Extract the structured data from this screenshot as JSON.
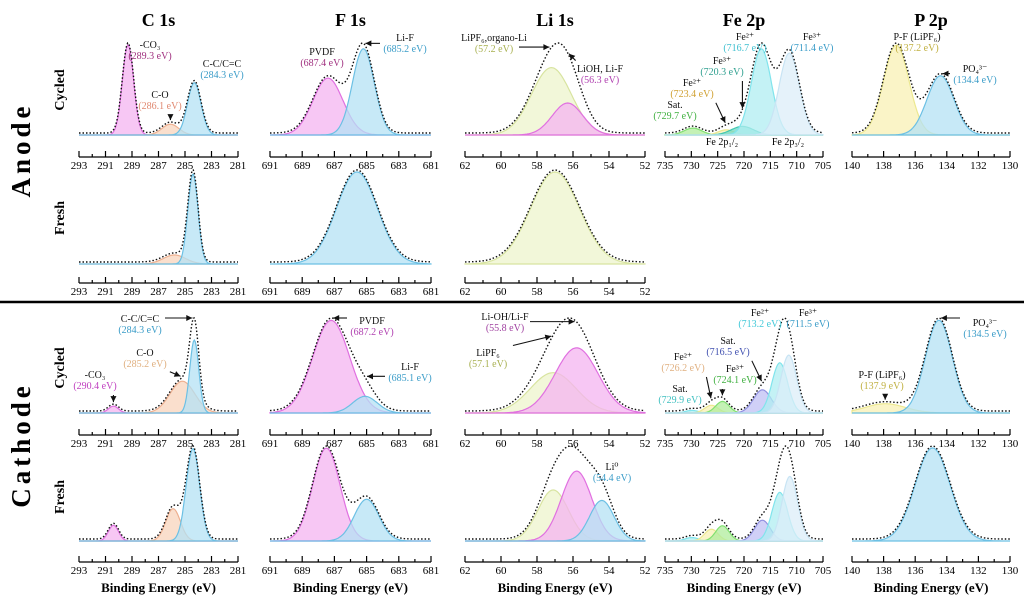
{
  "chart_data": {
    "type": "line",
    "columns": [
      "C 1s",
      "F 1s",
      "Li 1s",
      "Fe 2p",
      "P 2p"
    ],
    "sections": [
      "Anode",
      "Cathode"
    ],
    "rows": [
      "Cycled",
      "Fresh"
    ],
    "xlabel": "Binding Energy (eV)",
    "x_reversed": true,
    "xlim": {
      "C 1s": [
        293,
        281
      ],
      "F 1s": [
        691,
        681
      ],
      "Li 1s": [
        62,
        52
      ],
      "Fe 2p": [
        735,
        705
      ],
      "P 2p": [
        140,
        130
      ]
    },
    "ticks": {
      "C 1s": [
        "293",
        "291",
        "289",
        "287",
        "285",
        "283",
        "281"
      ],
      "F 1s": [
        "691",
        "689",
        "687",
        "685",
        "683",
        "681"
      ],
      "Li 1s": [
        "62",
        "60",
        "58",
        "56",
        "54",
        "52"
      ],
      "Fe 2p": [
        "735",
        "730",
        "725",
        "720",
        "715",
        "710",
        "705"
      ],
      "P 2p": [
        "140",
        "138",
        "136",
        "134",
        "132",
        "130"
      ]
    },
    "colors": {
      "magenta": "#e070e0",
      "blue": "#6cc0e4",
      "orange": "#eeb090",
      "olive": "#d8e4a0",
      "yellow": "#ece890",
      "teal": "#40c8b0",
      "green": "#80e070",
      "purple": "#9090e0",
      "lightblue": "#c8e4f4",
      "cyan": "#80e4ec"
    },
    "panels": [
      {
        "section": "Anode",
        "row": "Cycled",
        "element": "C 1s",
        "components": [
          {
            "name": "-CO3",
            "energy": 289.3,
            "fwhm": 1.0,
            "height": 1.0,
            "color": "magenta"
          },
          {
            "name": "C-O",
            "energy": 286.1,
            "fwhm": 1.5,
            "height": 0.12,
            "color": "orange"
          },
          {
            "name": "C-C/C=C",
            "energy": 284.3,
            "fwhm": 1.2,
            "height": 0.58,
            "color": "blue"
          }
        ],
        "annotations": [
          {
            "text": "-CO₃",
            "value": "(289.3 eV)",
            "color": "#a0307f",
            "component": 0
          },
          {
            "text": "C-O",
            "value": "(286.1 eV)",
            "color": "#e08870",
            "component": 1
          },
          {
            "text": "C-C/C=C",
            "value": "(284.3 eV)",
            "color": "#3a9cc8",
            "component": 2
          }
        ]
      },
      {
        "section": "Anode",
        "row": "Cycled",
        "element": "F 1s",
        "components": [
          {
            "name": "PVDF",
            "energy": 687.4,
            "fwhm": 2.2,
            "height": 0.66,
            "color": "magenta"
          },
          {
            "name": "Li-F",
            "energy": 685.2,
            "fwhm": 1.6,
            "height": 1.0,
            "color": "blue"
          }
        ],
        "annotations": [
          {
            "text": "PVDF",
            "value": "(687.4 eV)",
            "color": "#a0307f",
            "component": 0
          },
          {
            "text": "Li-F",
            "value": "(685.2 eV)",
            "color": "#3a9cc8",
            "component": 1
          }
        ]
      },
      {
        "section": "Anode",
        "row": "Cycled",
        "element": "Li 1s",
        "components": [
          {
            "name": "LiPF6,organo-Li",
            "energy": 57.2,
            "fwhm": 2.6,
            "height": 0.78,
            "color": "olive"
          },
          {
            "name": "LiOH, Li-F",
            "energy": 56.3,
            "fwhm": 2.0,
            "height": 0.37,
            "color": "magenta"
          }
        ],
        "annotations": [
          {
            "text": "LiPF₆,organo-Li",
            "value": "(57.2 eV)",
            "color": "#a8b050",
            "component": 0
          },
          {
            "text": "LiOH, Li-F",
            "value": "(56.3 eV)",
            "color": "#b040b0",
            "component": 1
          }
        ]
      },
      {
        "section": "Anode",
        "row": "Cycled",
        "element": "Fe 2p",
        "components": [
          {
            "name": "Sat.",
            "energy": 729.7,
            "fwhm": 4.0,
            "height": 0.08,
            "color": "green"
          },
          {
            "name": "Fe2+",
            "energy": 723.4,
            "fwhm": 3.5,
            "height": 0.06,
            "color": "yellow"
          },
          {
            "name": "Fe3+",
            "energy": 720.3,
            "fwhm": 5.0,
            "height": 0.1,
            "color": "teal"
          },
          {
            "name": "Fe2+",
            "energy": 716.7,
            "fwhm": 4.5,
            "height": 1.0,
            "color": "cyan"
          },
          {
            "name": "Fe3+",
            "energy": 711.4,
            "fwhm": 4.5,
            "height": 0.95,
            "color": "lightblue"
          }
        ],
        "annotations": [
          {
            "text": "Sat.",
            "value": "(729.7 eV)",
            "color": "#40b040",
            "component": 0
          },
          {
            "text": "Fe²⁺",
            "value": "(723.4 eV)",
            "color": "#d0a030",
            "component": 1
          },
          {
            "text": "Fe³⁺",
            "value": "(720.3 eV)",
            "color": "#30a090",
            "component": 2
          },
          {
            "text": "Fe²⁺",
            "value": "(716.7 eV)",
            "color": "#40c0d0",
            "component": 3
          },
          {
            "text": "Fe³⁺",
            "value": "(711.4 eV)",
            "color": "#3a9cc8",
            "component": 4
          }
        ],
        "region_labels": [
          "Fe 2p₁/₂",
          "Fe 2p₃/₂"
        ]
      },
      {
        "section": "Anode",
        "row": "Cycled",
        "element": "P 2p",
        "components": [
          {
            "name": "P-F (LiPF6)",
            "energy": 137.2,
            "fwhm": 1.9,
            "height": 1.0,
            "color": "yellow"
          },
          {
            "name": "PO4 3-",
            "energy": 134.4,
            "fwhm": 2.0,
            "height": 0.66,
            "color": "blue"
          }
        ],
        "annotations": [
          {
            "text": "P-F (LiPF₆)",
            "value": "(137.2 eV)",
            "color": "#c0b040",
            "component": 0
          },
          {
            "text": "PO₄³⁻",
            "value": "(134.4 eV)",
            "color": "#3a9cc8",
            "component": 1
          }
        ]
      },
      {
        "section": "Anode",
        "row": "Fresh",
        "element": "C 1s",
        "components": [
          {
            "name": "C-O",
            "energy": 285.8,
            "fwhm": 2.0,
            "height": 0.1,
            "color": "orange"
          },
          {
            "name": "C-C/C=C",
            "energy": 284.4,
            "fwhm": 0.9,
            "height": 1.0,
            "color": "blue"
          }
        ],
        "annotations": []
      },
      {
        "section": "Anode",
        "row": "Fresh",
        "element": "F 1s",
        "components": [
          {
            "name": "Li-F",
            "energy": 685.6,
            "fwhm": 3.0,
            "height": 1.0,
            "color": "blue"
          }
        ],
        "annotations": []
      },
      {
        "section": "Anode",
        "row": "Fresh",
        "element": "Li 1s",
        "components": [
          {
            "name": "LiPF6,organo-Li",
            "energy": 57.0,
            "fwhm": 3.2,
            "height": 1.0,
            "color": "olive"
          }
        ],
        "annotations": []
      },
      {
        "section": "Cathode",
        "row": "Cycled",
        "element": "C 1s",
        "components": [
          {
            "name": "-CO3",
            "energy": 290.4,
            "fwhm": 0.9,
            "height": 0.08,
            "color": "magenta"
          },
          {
            "name": "C-O",
            "energy": 285.2,
            "fwhm": 2.2,
            "height": 0.37,
            "color": "orange"
          },
          {
            "name": "C-C/C=C",
            "energy": 284.3,
            "fwhm": 0.8,
            "height": 0.85,
            "color": "blue"
          }
        ],
        "annotations": [
          {
            "text": "-CO₃",
            "value": "(290.4 eV)",
            "color": "#c040c0",
            "component": 0
          },
          {
            "text": "C-O",
            "value": "(285.2 eV)",
            "color": "#e0b080",
            "component": 1
          },
          {
            "text": "C-C/C=C",
            "value": "(284.3 eV)",
            "color": "#3a9cc8",
            "component": 2
          }
        ]
      },
      {
        "section": "Cathode",
        "row": "Cycled",
        "element": "F 1s",
        "components": [
          {
            "name": "PVDF",
            "energy": 687.2,
            "fwhm": 2.7,
            "height": 1.0,
            "color": "magenta"
          },
          {
            "name": "Li-F",
            "energy": 685.1,
            "fwhm": 1.8,
            "height": 0.18,
            "color": "blue"
          }
        ],
        "annotations": [
          {
            "text": "PVDF",
            "value": "(687.2 eV)",
            "color": "#b040b0",
            "component": 0
          },
          {
            "text": "Li-F",
            "value": "(685.1 eV)",
            "color": "#3a9cc8",
            "component": 1
          }
        ]
      },
      {
        "section": "Cathode",
        "row": "Cycled",
        "element": "Li 1s",
        "components": [
          {
            "name": "LiPF6",
            "energy": 57.1,
            "fwhm": 3.0,
            "height": 0.6,
            "color": "olive"
          },
          {
            "name": "Li-OH/Li-F",
            "energy": 55.8,
            "fwhm": 2.8,
            "height": 0.97,
            "color": "magenta"
          }
        ],
        "annotations": [
          {
            "text": "LiPF₆",
            "value": "(57.1 eV)",
            "color": "#a8b050",
            "component": 0
          },
          {
            "text": "Li-OH/Li-F",
            "value": "(55.8 eV)",
            "color": "#a040a0",
            "component": 1
          }
        ]
      },
      {
        "section": "Cathode",
        "row": "Cycled",
        "element": "Fe 2p",
        "components": [
          {
            "name": "Sat.",
            "energy": 729.9,
            "fwhm": 3.0,
            "height": 0.04,
            "color": "cyan"
          },
          {
            "name": "Fe2+",
            "energy": 726.2,
            "fwhm": 3.0,
            "height": 0.12,
            "color": "yellow"
          },
          {
            "name": "Fe3+",
            "energy": 724.1,
            "fwhm": 3.0,
            "height": 0.18,
            "color": "green"
          },
          {
            "name": "Sat.",
            "energy": 716.5,
            "fwhm": 4.0,
            "height": 0.36,
            "color": "purple"
          },
          {
            "name": "Fe2+",
            "energy": 713.2,
            "fwhm": 3.5,
            "height": 0.78,
            "color": "cyan"
          },
          {
            "name": "Fe3+",
            "energy": 711.5,
            "fwhm": 3.5,
            "height": 0.9,
            "color": "lightblue"
          }
        ],
        "annotations": [
          {
            "text": "Sat.",
            "value": "(729.9 eV)",
            "color": "#40c0c0",
            "component": 0
          },
          {
            "text": "Fe²⁺",
            "value": "(726.2 eV)",
            "color": "#e0b080",
            "component": 1
          },
          {
            "text": "Fe³⁺",
            "value": "(724.1 eV)",
            "color": "#40b040",
            "component": 2
          },
          {
            "text": "Sat.",
            "value": "(716.5 eV)",
            "color": "#4050b0",
            "component": 3
          },
          {
            "text": "Fe²⁺",
            "value": "(713.2 eV)",
            "color": "#40c8d8",
            "component": 4
          },
          {
            "text": "Fe³⁺",
            "value": "(711.5 eV)",
            "color": "#3a9cc8",
            "component": 5
          }
        ]
      },
      {
        "section": "Cathode",
        "row": "Cycled",
        "element": "P 2p",
        "components": [
          {
            "name": "P-F (LiPF6)",
            "energy": 137.9,
            "fwhm": 3.0,
            "height": 0.1,
            "color": "yellow"
          },
          {
            "name": "PO4 3-",
            "energy": 134.5,
            "fwhm": 2.0,
            "height": 1.0,
            "color": "blue"
          }
        ],
        "annotations": [
          {
            "text": "P-F (LiPF₆)",
            "value": "(137.9 eV)",
            "color": "#c0b040",
            "component": 0
          },
          {
            "text": "PO₄³⁻",
            "value": "(134.5 eV)",
            "color": "#3a9cc8",
            "component": 1
          }
        ]
      },
      {
        "section": "Cathode",
        "row": "Fresh",
        "element": "C 1s",
        "components": [
          {
            "name": "-CO3",
            "energy": 290.4,
            "fwhm": 0.9,
            "height": 0.17,
            "color": "magenta"
          },
          {
            "name": "C-O",
            "energy": 285.9,
            "fwhm": 1.3,
            "height": 0.35,
            "color": "orange"
          },
          {
            "name": "C-C/C=C",
            "energy": 284.4,
            "fwhm": 1.2,
            "height": 1.0,
            "color": "blue"
          }
        ],
        "annotations": []
      },
      {
        "section": "Cathode",
        "row": "Fresh",
        "element": "F 1s",
        "components": [
          {
            "name": "PVDF",
            "energy": 687.5,
            "fwhm": 2.0,
            "height": 1.0,
            "color": "magenta"
          },
          {
            "name": "Li-F",
            "energy": 685.0,
            "fwhm": 1.8,
            "height": 0.45,
            "color": "blue"
          }
        ],
        "annotations": []
      },
      {
        "section": "Cathode",
        "row": "Fresh",
        "element": "Li 1s",
        "components": [
          {
            "name": "LiPF6",
            "energy": 57.1,
            "fwhm": 2.0,
            "height": 0.73,
            "color": "olive"
          },
          {
            "name": "Li-OH/Li-F",
            "energy": 55.8,
            "fwhm": 2.0,
            "height": 1.0,
            "color": "magenta"
          },
          {
            "name": "Li0",
            "energy": 54.4,
            "fwhm": 1.6,
            "height": 0.58,
            "color": "blue"
          }
        ],
        "annotations": [
          {
            "text": "Li⁰",
            "value": "(54.4 eV)",
            "color": "#3a9cc8",
            "component": 2
          }
        ]
      },
      {
        "section": "Cathode",
        "row": "Fresh",
        "element": "Fe 2p",
        "components": [
          {
            "name": "Sat.",
            "energy": 729.9,
            "fwhm": 3.0,
            "height": 0.05,
            "color": "cyan"
          },
          {
            "name": "Fe2+",
            "energy": 726.2,
            "fwhm": 3.0,
            "height": 0.17,
            "color": "yellow"
          },
          {
            "name": "Fe3+",
            "energy": 724.1,
            "fwhm": 3.0,
            "height": 0.22,
            "color": "green"
          },
          {
            "name": "Sat.",
            "energy": 716.5,
            "fwhm": 3.5,
            "height": 0.3,
            "color": "purple"
          },
          {
            "name": "Fe2+",
            "energy": 713.2,
            "fwhm": 3.5,
            "height": 0.7,
            "color": "cyan"
          },
          {
            "name": "Fe3+",
            "energy": 711.3,
            "fwhm": 3.5,
            "height": 0.93,
            "color": "lightblue"
          }
        ],
        "annotations": []
      },
      {
        "section": "Cathode",
        "row": "Fresh",
        "element": "P 2p",
        "components": [
          {
            "name": "PO4 3-",
            "energy": 134.9,
            "fwhm": 2.6,
            "height": 1.0,
            "color": "blue"
          }
        ],
        "annotations": []
      }
    ]
  }
}
